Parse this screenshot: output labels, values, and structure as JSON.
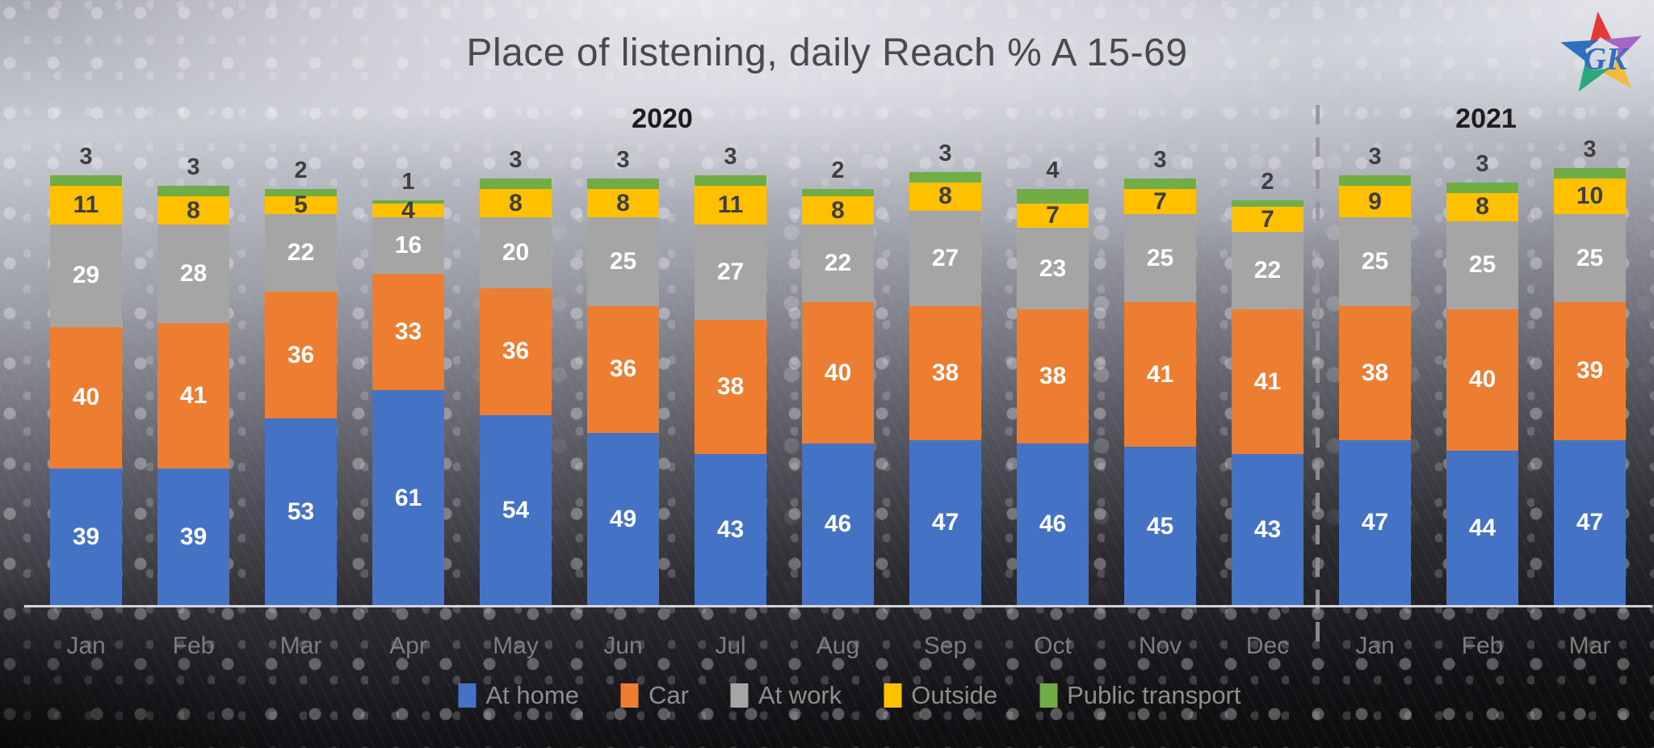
{
  "title": "Place of listening, daily Reach % A 15-69",
  "years": [
    "2020",
    "2021"
  ],
  "logo": {
    "text": "GK"
  },
  "chart_data": {
    "type": "bar",
    "stacked": true,
    "title": "Place of listening, daily Reach % A 15-69",
    "categories": [
      "Jan",
      "Feb",
      "Mar",
      "Apr",
      "May",
      "Jun",
      "Jul",
      "Aug",
      "Sep",
      "Oct",
      "Nov",
      "Dec",
      "Jan",
      "Feb",
      "Mar"
    ],
    "year_of_category": [
      "2020",
      "2020",
      "2020",
      "2020",
      "2020",
      "2020",
      "2020",
      "2020",
      "2020",
      "2020",
      "2020",
      "2020",
      "2021",
      "2021",
      "2021"
    ],
    "divider_after_index": 11,
    "series": [
      {
        "name": "At home",
        "color": "#4472C4",
        "label_color": "#FFFFFF",
        "label_position": "inside",
        "values": [
          39,
          39,
          53,
          61,
          54,
          49,
          43,
          46,
          47,
          46,
          45,
          43,
          47,
          44,
          47
        ]
      },
      {
        "name": "Car",
        "color": "#ED7D31",
        "label_color": "#FFFFFF",
        "label_position": "inside",
        "values": [
          40,
          41,
          36,
          33,
          36,
          36,
          38,
          40,
          38,
          38,
          41,
          41,
          38,
          40,
          39
        ]
      },
      {
        "name": "At work",
        "color": "#A5A5A5",
        "label_color": "#FFFFFF",
        "label_position": "inside",
        "values": [
          29,
          28,
          22,
          16,
          20,
          25,
          27,
          22,
          27,
          23,
          25,
          22,
          25,
          25,
          25
        ]
      },
      {
        "name": "Outside",
        "color": "#FFC000",
        "label_color": "#3F3F3F",
        "label_position": "inside",
        "values": [
          11,
          8,
          5,
          4,
          8,
          8,
          11,
          8,
          8,
          7,
          7,
          7,
          9,
          8,
          10
        ]
      },
      {
        "name": "Public transport",
        "color": "#70AD47",
        "label_color": "#3F3F3F",
        "label_position": "above",
        "values": [
          3,
          3,
          2,
          1,
          3,
          3,
          3,
          2,
          3,
          4,
          3,
          2,
          3,
          3,
          3
        ]
      }
    ],
    "legend": [
      "At home",
      "Car",
      "At work",
      "Outside",
      "Public transport"
    ],
    "legend_position": "bottom",
    "value_labels": true,
    "ylim": [
      0,
      125
    ],
    "grid": false
  }
}
